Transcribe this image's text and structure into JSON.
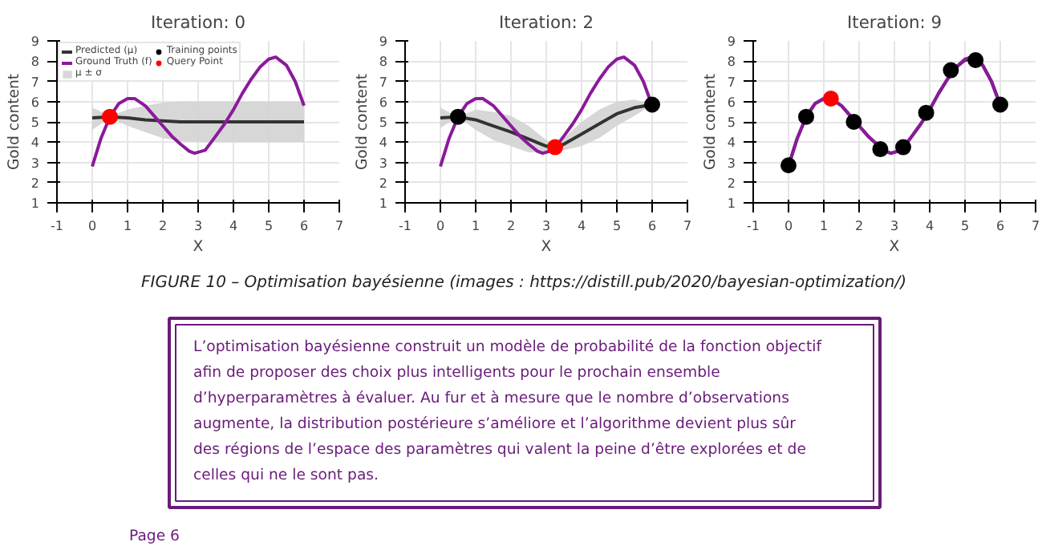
{
  "chart_data": [
    {
      "type": "line",
      "title": "Iteration: 0",
      "xlabel": "X",
      "ylabel": "Gold content",
      "xlim": [
        -1,
        7
      ],
      "ylim": [
        1,
        9
      ],
      "xticks": [
        -1,
        0,
        1,
        2,
        3,
        4,
        5,
        6,
        7
      ],
      "yticks": [
        1,
        2,
        3,
        4,
        5,
        6,
        7,
        8,
        9
      ],
      "grid": true,
      "legend": "top left",
      "series": [
        {
          "name": "Predicted (μ)",
          "type": "line",
          "color": "#333333",
          "x": [
            0,
            0.5,
            1,
            1.5,
            2,
            2.5,
            3,
            4,
            5,
            6
          ],
          "values": [
            5.2,
            5.25,
            5.2,
            5.1,
            5.05,
            5.0,
            5.0,
            5.0,
            5.0,
            5.0
          ],
          "lower": [
            4.6,
            5.2,
            4.8,
            4.5,
            4.2,
            4.05,
            4.0,
            4.0,
            4.0,
            4.0
          ],
          "upper": [
            5.7,
            5.3,
            5.6,
            5.8,
            5.95,
            6.0,
            6.0,
            6.0,
            6.0,
            6.0
          ]
        },
        {
          "name": "Ground Truth (f)",
          "type": "line",
          "color": "#8b1a9b",
          "x": [
            0,
            0.25,
            0.5,
            0.75,
            1,
            1.2,
            1.5,
            1.75,
            2,
            2.25,
            2.5,
            2.75,
            2.9,
            3.2,
            3.5,
            3.75,
            4,
            4.25,
            4.5,
            4.75,
            5,
            5.2,
            5.5,
            5.75,
            6
          ],
          "values": [
            2.8,
            4.2,
            5.25,
            5.9,
            6.15,
            6.15,
            5.8,
            5.3,
            4.8,
            4.3,
            3.9,
            3.55,
            3.45,
            3.6,
            4.3,
            4.9,
            5.6,
            6.4,
            7.1,
            7.7,
            8.1,
            8.2,
            7.8,
            7.0,
            5.8
          ]
        },
        {
          "name": "μ ± σ",
          "type": "area",
          "color": "#d3d3d3"
        },
        {
          "name": "Training points",
          "type": "scatter",
          "color": "#000000"
        },
        {
          "name": "Query Point",
          "type": "scatter",
          "color": "#ff0000",
          "x": [
            0.5
          ],
          "values": [
            5.25
          ]
        }
      ]
    },
    {
      "type": "line",
      "title": "Iteration: 2",
      "xlabel": "X",
      "ylabel": "Gold content",
      "xlim": [
        -1,
        7
      ],
      "ylim": [
        1,
        9
      ],
      "xticks": [
        -1,
        0,
        1,
        2,
        3,
        4,
        5,
        6,
        7
      ],
      "yticks": [
        1,
        2,
        3,
        4,
        5,
        6,
        7,
        8,
        9
      ],
      "grid": true,
      "series": [
        {
          "type": "line",
          "color": "#333333",
          "x": [
            0,
            0.5,
            1,
            1.5,
            2,
            2.5,
            3,
            3.25,
            3.5,
            4,
            4.5,
            5,
            5.5,
            6
          ],
          "values": [
            5.2,
            5.25,
            5.1,
            4.8,
            4.5,
            4.15,
            3.8,
            3.75,
            3.9,
            4.4,
            4.9,
            5.4,
            5.7,
            5.85
          ],
          "lower": [
            4.7,
            5.25,
            4.6,
            4.1,
            3.8,
            3.5,
            3.5,
            3.7,
            3.6,
            3.8,
            4.2,
            4.8,
            5.3,
            5.85
          ],
          "upper": [
            5.7,
            5.25,
            5.6,
            5.5,
            5.3,
            4.8,
            4.1,
            3.8,
            4.2,
            5.0,
            5.6,
            6.0,
            6.1,
            5.85
          ]
        },
        {
          "type": "line",
          "color": "#8b1a9b",
          "x": [
            0,
            0.25,
            0.5,
            0.75,
            1,
            1.2,
            1.5,
            1.75,
            2,
            2.25,
            2.5,
            2.75,
            2.9,
            3.2,
            3.5,
            3.75,
            4,
            4.25,
            4.5,
            4.75,
            5,
            5.2,
            5.5,
            5.75,
            6
          ],
          "values": [
            2.8,
            4.2,
            5.25,
            5.9,
            6.15,
            6.15,
            5.8,
            5.3,
            4.8,
            4.3,
            3.9,
            3.55,
            3.45,
            3.6,
            4.3,
            4.9,
            5.6,
            6.4,
            7.1,
            7.7,
            8.1,
            8.2,
            7.8,
            7.0,
            5.8
          ]
        },
        {
          "type": "scatter",
          "color": "#000000",
          "x": [
            0.5,
            6
          ],
          "values": [
            5.25,
            5.85
          ]
        },
        {
          "type": "scatter",
          "color": "#ff0000",
          "x": [
            3.25
          ],
          "values": [
            3.75
          ]
        }
      ]
    },
    {
      "type": "line",
      "title": "Iteration: 9",
      "xlabel": "X",
      "ylabel": "Gold content",
      "xlim": [
        -1,
        7
      ],
      "ylim": [
        1,
        9
      ],
      "xticks": [
        -1,
        0,
        1,
        2,
        3,
        4,
        5,
        6,
        7
      ],
      "yticks": [
        1,
        2,
        3,
        4,
        5,
        6,
        7,
        8,
        9
      ],
      "grid": true,
      "series": [
        {
          "type": "line",
          "color": "#333333",
          "x": [
            0,
            0.25,
            0.5,
            0.75,
            1,
            1.2,
            1.5,
            1.75,
            2,
            2.25,
            2.5,
            2.75,
            2.9,
            3.2,
            3.5,
            3.75,
            4,
            4.25,
            4.5,
            4.75,
            5,
            5.3,
            5.5,
            5.75,
            6
          ],
          "values": [
            2.85,
            4.2,
            5.25,
            5.9,
            6.15,
            6.15,
            5.8,
            5.3,
            4.8,
            4.3,
            3.9,
            3.55,
            3.45,
            3.6,
            4.3,
            4.9,
            5.6,
            6.4,
            7.1,
            7.7,
            8.05,
            8.1,
            7.8,
            7.0,
            5.85
          ]
        },
        {
          "type": "line",
          "color": "#8b1a9b",
          "x": [
            0,
            0.25,
            0.5,
            0.75,
            1,
            1.2,
            1.5,
            1.75,
            2,
            2.25,
            2.5,
            2.75,
            2.9,
            3.2,
            3.5,
            3.75,
            4,
            4.25,
            4.5,
            4.75,
            5,
            5.2,
            5.5,
            5.75,
            6
          ],
          "values": [
            2.8,
            4.2,
            5.25,
            5.9,
            6.15,
            6.15,
            5.8,
            5.3,
            4.8,
            4.3,
            3.9,
            3.55,
            3.45,
            3.6,
            4.3,
            4.9,
            5.6,
            6.4,
            7.1,
            7.7,
            8.1,
            8.2,
            7.8,
            7.0,
            5.8
          ]
        },
        {
          "type": "scatter",
          "color": "#000000",
          "x": [
            0,
            0.5,
            1.85,
            2.6,
            3.25,
            3.9,
            4.6,
            5.3,
            6
          ],
          "values": [
            2.85,
            5.25,
            5.0,
            3.65,
            3.75,
            5.45,
            7.55,
            8.05,
            5.85
          ]
        },
        {
          "type": "scatter",
          "color": "#ff0000",
          "x": [
            1.2
          ],
          "values": [
            6.15
          ]
        }
      ]
    },
    {
      "type": "other",
      "annotations": [
        "FIGURE 10 – Optimisation bayésienne (images : https://distill.pub/2020/bayesian-optimization/)",
        "L’optimisation bayésienne construit un modèle de probabilité de la fonction objectif afin de proposer des choix plus intelligents pour le prochain ensemble d’hyperparamètres à évaluer. Au fur et à mesure que le nombre d’observations augmente, la distribution postérieure s’améliore et l’algorithme devient plus sûr des régions de l’espace des paramètres qui valent la peine d’être explorées et de celles qui ne le sont pas.",
        "Page 6"
      ]
    }
  ]
}
